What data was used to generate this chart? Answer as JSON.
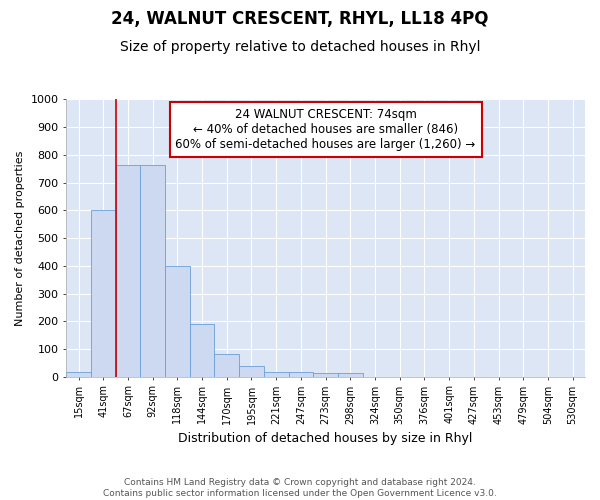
{
  "title": "24, WALNUT CRESCENT, RHYL, LL18 4PQ",
  "subtitle": "Size of property relative to detached houses in Rhyl",
  "xlabel": "Distribution of detached houses by size in Rhyl",
  "ylabel": "Number of detached properties",
  "footer": "Contains HM Land Registry data © Crown copyright and database right 2024.\nContains public sector information licensed under the Open Government Licence v3.0.",
  "categories": [
    "15sqm",
    "41sqm",
    "67sqm",
    "92sqm",
    "118sqm",
    "144sqm",
    "170sqm",
    "195sqm",
    "221sqm",
    "247sqm",
    "273sqm",
    "298sqm",
    "324sqm",
    "350sqm",
    "376sqm",
    "401sqm",
    "427sqm",
    "453sqm",
    "479sqm",
    "504sqm",
    "530sqm"
  ],
  "values": [
    15,
    600,
    765,
    765,
    400,
    190,
    80,
    40,
    18,
    18,
    12,
    12,
    0,
    0,
    0,
    0,
    0,
    0,
    0,
    0,
    0
  ],
  "bar_color": "#ccd9f0",
  "bar_edge_color": "#6a9fd8",
  "background_color": "#dce6f5",
  "grid_color": "#ffffff",
  "figure_background": "#ffffff",
  "red_line_x": 2.0,
  "annotation_text": "24 WALNUT CRESCENT: 74sqm\n← 40% of detached houses are smaller (846)\n60% of semi-detached houses are larger (1,260) →",
  "annotation_box_color": "#ffffff",
  "annotation_border_color": "#cc0000",
  "ylim": [
    0,
    1000
  ],
  "yticks": [
    0,
    100,
    200,
    300,
    400,
    500,
    600,
    700,
    800,
    900,
    1000
  ],
  "title_fontsize": 12,
  "subtitle_fontsize": 10
}
